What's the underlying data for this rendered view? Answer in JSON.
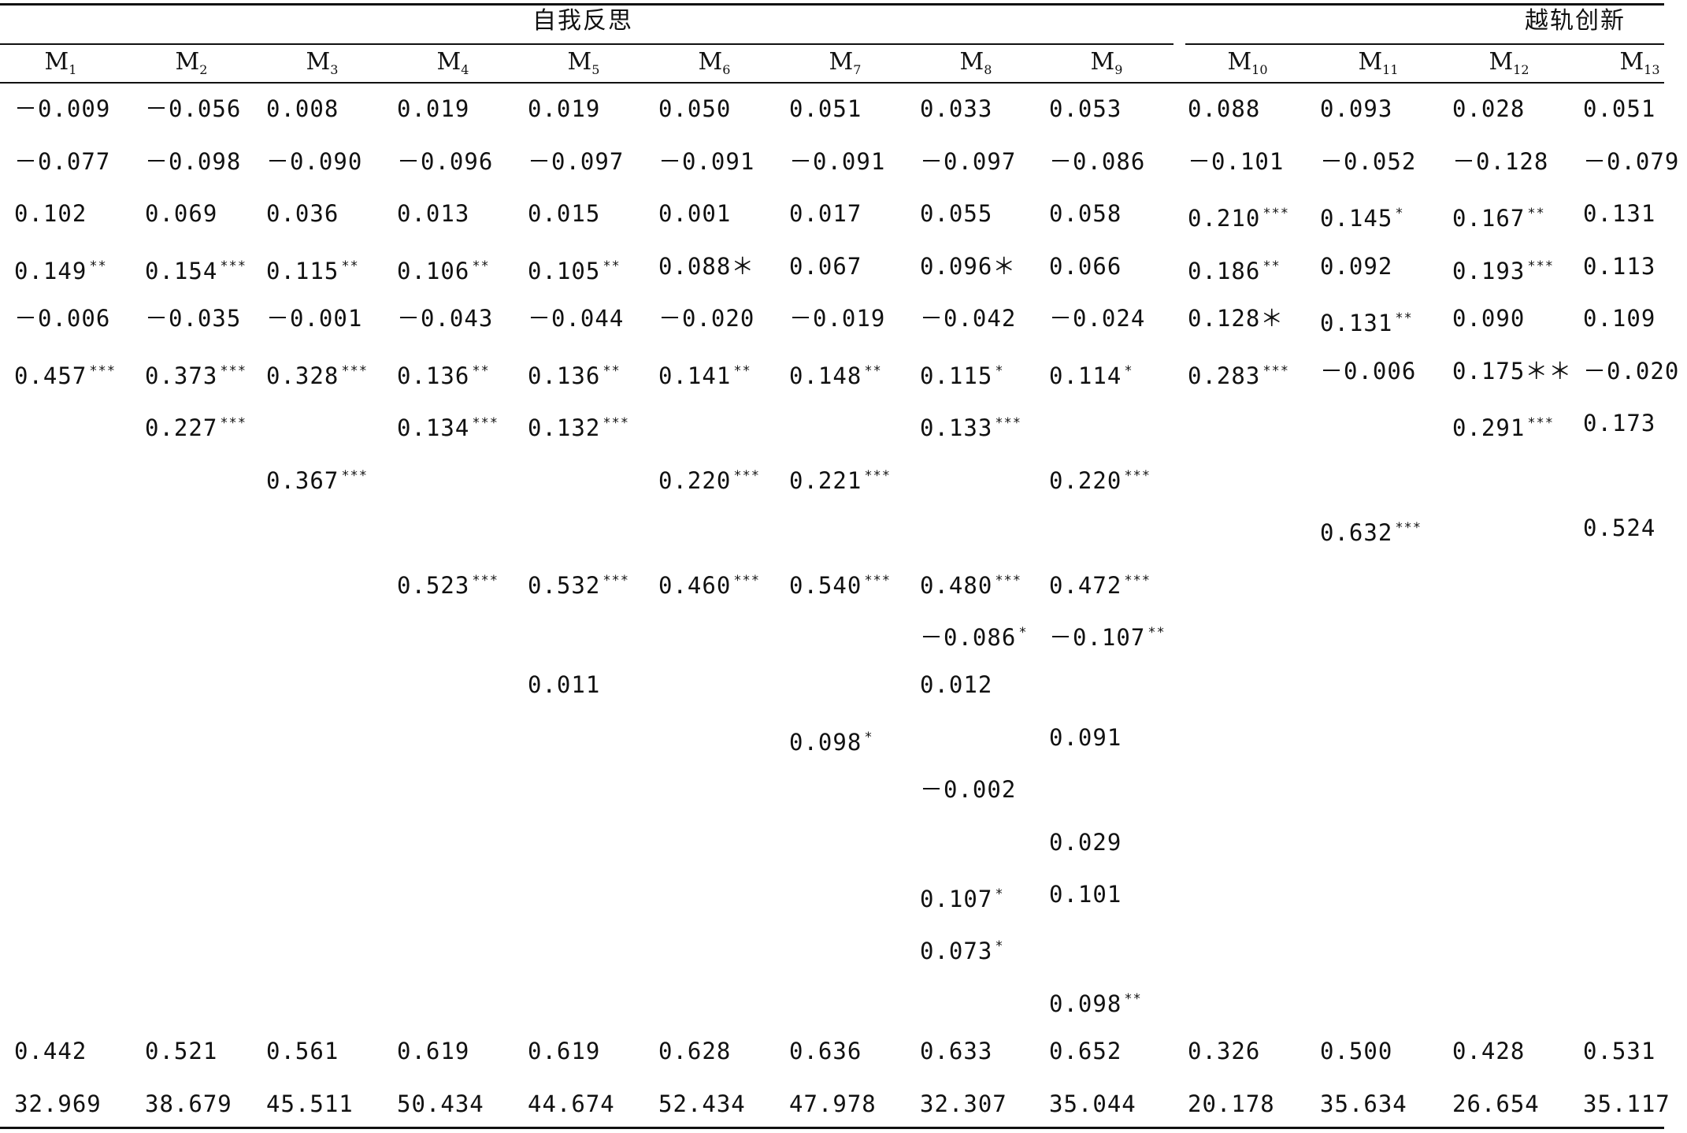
{
  "groups": [
    {
      "id": "self-reflection",
      "title": "自我反思"
    },
    {
      "id": "deviant-innovation",
      "title": "越轨创新"
    }
  ],
  "columns": [
    {
      "base": "M",
      "sub": "1"
    },
    {
      "base": "M",
      "sub": "2"
    },
    {
      "base": "M",
      "sub": "3"
    },
    {
      "base": "M",
      "sub": "4"
    },
    {
      "base": "M",
      "sub": "5"
    },
    {
      "base": "M",
      "sub": "6"
    },
    {
      "base": "M",
      "sub": "7"
    },
    {
      "base": "M",
      "sub": "8"
    },
    {
      "base": "M",
      "sub": "9"
    },
    {
      "base": "M",
      "sub": "10"
    },
    {
      "base": "M",
      "sub": "11"
    },
    {
      "base": "M",
      "sub": "12"
    },
    {
      "base": "M",
      "sub": "13"
    }
  ],
  "rows": [
    [
      [
        "－0.009",
        ""
      ],
      [
        "－0.056",
        ""
      ],
      [
        "0.008",
        ""
      ],
      [
        "0.019",
        ""
      ],
      [
        "0.019",
        ""
      ],
      [
        "0.050",
        ""
      ],
      [
        "0.051",
        ""
      ],
      [
        "0.033",
        ""
      ],
      [
        "0.053",
        ""
      ],
      [
        "0.088",
        ""
      ],
      [
        "0.093",
        ""
      ],
      [
        "0.028",
        ""
      ],
      [
        "0.051",
        ""
      ]
    ],
    [
      [
        "－0.077",
        ""
      ],
      [
        "－0.098",
        ""
      ],
      [
        "－0.090",
        ""
      ],
      [
        "－0.096",
        ""
      ],
      [
        "－0.097",
        ""
      ],
      [
        "－0.091",
        ""
      ],
      [
        "－0.091",
        ""
      ],
      [
        "－0.097",
        ""
      ],
      [
        "－0.086",
        ""
      ],
      [
        "－0.101",
        ""
      ],
      [
        "－0.052",
        ""
      ],
      [
        "－0.128",
        ""
      ],
      [
        "－0.079",
        ""
      ]
    ],
    [
      [
        "0.102",
        ""
      ],
      [
        "0.069",
        ""
      ],
      [
        "0.036",
        ""
      ],
      [
        "0.013",
        ""
      ],
      [
        "0.015",
        ""
      ],
      [
        "0.001",
        ""
      ],
      [
        "0.017",
        ""
      ],
      [
        "0.055",
        ""
      ],
      [
        "0.058",
        ""
      ],
      [
        "0.210",
        "***"
      ],
      [
        "0.145",
        "*"
      ],
      [
        "0.167",
        "**"
      ],
      [
        "0.131",
        ""
      ]
    ],
    [
      [
        "0.149",
        "**"
      ],
      [
        "0.154",
        "***"
      ],
      [
        "0.115",
        "**"
      ],
      [
        "0.106",
        "**"
      ],
      [
        "0.105",
        "**"
      ],
      [
        "0.088＊",
        ""
      ],
      [
        "0.067",
        ""
      ],
      [
        "0.096＊",
        ""
      ],
      [
        "0.066",
        ""
      ],
      [
        "0.186",
        "**"
      ],
      [
        "0.092",
        ""
      ],
      [
        "0.193",
        "***"
      ],
      [
        "0.113",
        ""
      ]
    ],
    [
      [
        "－0.006",
        ""
      ],
      [
        "－0.035",
        ""
      ],
      [
        "－0.001",
        ""
      ],
      [
        "－0.043",
        ""
      ],
      [
        "－0.044",
        ""
      ],
      [
        "－0.020",
        ""
      ],
      [
        "－0.019",
        ""
      ],
      [
        "－0.042",
        ""
      ],
      [
        "－0.024",
        ""
      ],
      [
        "0.128＊",
        ""
      ],
      [
        "0.131",
        "**"
      ],
      [
        "0.090",
        ""
      ],
      [
        "0.109",
        ""
      ]
    ],
    [
      [
        "0.457",
        "***"
      ],
      [
        "0.373",
        "***"
      ],
      [
        "0.328",
        "***"
      ],
      [
        "0.136",
        "**"
      ],
      [
        "0.136",
        "**"
      ],
      [
        "0.141",
        "**"
      ],
      [
        "0.148",
        "**"
      ],
      [
        "0.115",
        "*"
      ],
      [
        "0.114",
        "*"
      ],
      [
        "0.283",
        "***"
      ],
      [
        "－0.006",
        ""
      ],
      [
        "0.175＊＊",
        ""
      ],
      [
        "－0.020",
        ""
      ]
    ],
    [
      [
        "",
        ""
      ],
      [
        "0.227",
        "***"
      ],
      [
        "",
        ""
      ],
      [
        "0.134",
        "***"
      ],
      [
        "0.132",
        "***"
      ],
      [
        "",
        ""
      ],
      [
        "",
        ""
      ],
      [
        "0.133",
        "***"
      ],
      [
        "",
        ""
      ],
      [
        "",
        ""
      ],
      [
        "",
        ""
      ],
      [
        "0.291",
        "***"
      ],
      [
        "0.173",
        ""
      ]
    ],
    [
      [
        "",
        ""
      ],
      [
        "",
        ""
      ],
      [
        "0.367",
        "***"
      ],
      [
        "",
        ""
      ],
      [
        "",
        ""
      ],
      [
        "0.220",
        "***"
      ],
      [
        "0.221",
        "***"
      ],
      [
        "",
        ""
      ],
      [
        "0.220",
        "***"
      ],
      [
        "",
        ""
      ],
      [
        "",
        ""
      ],
      [
        "",
        ""
      ],
      [
        "",
        ""
      ]
    ],
    [
      [
        "",
        ""
      ],
      [
        "",
        ""
      ],
      [
        "",
        ""
      ],
      [
        "",
        ""
      ],
      [
        "",
        ""
      ],
      [
        "",
        ""
      ],
      [
        "",
        ""
      ],
      [
        "",
        ""
      ],
      [
        "",
        ""
      ],
      [
        "",
        ""
      ],
      [
        "0.632",
        "***"
      ],
      [
        "",
        ""
      ],
      [
        "0.524",
        ""
      ]
    ],
    [
      [
        "",
        ""
      ],
      [
        "",
        ""
      ],
      [
        "",
        ""
      ],
      [
        "0.523",
        "***"
      ],
      [
        "0.532",
        "***"
      ],
      [
        "0.460",
        "***"
      ],
      [
        "0.540",
        "***"
      ],
      [
        "0.480",
        "***"
      ],
      [
        "0.472",
        "***"
      ],
      [
        "",
        ""
      ],
      [
        "",
        ""
      ],
      [
        "",
        ""
      ],
      [
        "",
        ""
      ]
    ],
    [
      [
        "",
        ""
      ],
      [
        "",
        ""
      ],
      [
        "",
        ""
      ],
      [
        "",
        ""
      ],
      [
        "",
        ""
      ],
      [
        "",
        ""
      ],
      [
        "",
        ""
      ],
      [
        "－0.086",
        "*"
      ],
      [
        "－0.107",
        "**"
      ],
      [
        "",
        ""
      ],
      [
        "",
        ""
      ],
      [
        "",
        ""
      ],
      [
        "",
        ""
      ]
    ],
    [
      [
        "",
        ""
      ],
      [
        "",
        ""
      ],
      [
        "",
        ""
      ],
      [
        "",
        ""
      ],
      [
        "0.011",
        ""
      ],
      [
        "",
        ""
      ],
      [
        "",
        ""
      ],
      [
        "0.012",
        ""
      ],
      [
        "",
        ""
      ],
      [
        "",
        ""
      ],
      [
        "",
        ""
      ],
      [
        "",
        ""
      ],
      [
        "",
        ""
      ]
    ],
    [
      [
        "",
        ""
      ],
      [
        "",
        ""
      ],
      [
        "",
        ""
      ],
      [
        "",
        ""
      ],
      [
        "",
        ""
      ],
      [
        "",
        ""
      ],
      [
        "0.098",
        "*"
      ],
      [
        "",
        ""
      ],
      [
        "0.091",
        ""
      ],
      [
        "",
        ""
      ],
      [
        "",
        ""
      ],
      [
        "",
        ""
      ],
      [
        "",
        ""
      ]
    ],
    [
      [
        "",
        ""
      ],
      [
        "",
        ""
      ],
      [
        "",
        ""
      ],
      [
        "",
        ""
      ],
      [
        "",
        ""
      ],
      [
        "",
        ""
      ],
      [
        "",
        ""
      ],
      [
        "－0.002",
        ""
      ],
      [
        "",
        ""
      ],
      [
        "",
        ""
      ],
      [
        "",
        ""
      ],
      [
        "",
        ""
      ],
      [
        "",
        ""
      ]
    ],
    [
      [
        "",
        ""
      ],
      [
        "",
        ""
      ],
      [
        "",
        ""
      ],
      [
        "",
        ""
      ],
      [
        "",
        ""
      ],
      [
        "",
        ""
      ],
      [
        "",
        ""
      ],
      [
        "",
        ""
      ],
      [
        "0.029",
        ""
      ],
      [
        "",
        ""
      ],
      [
        "",
        ""
      ],
      [
        "",
        ""
      ],
      [
        "",
        ""
      ]
    ],
    [
      [
        "",
        ""
      ],
      [
        "",
        ""
      ],
      [
        "",
        ""
      ],
      [
        "",
        ""
      ],
      [
        "",
        ""
      ],
      [
        "",
        ""
      ],
      [
        "",
        ""
      ],
      [
        "0.107",
        "*"
      ],
      [
        "0.101",
        ""
      ],
      [
        "",
        ""
      ],
      [
        "",
        ""
      ],
      [
        "",
        ""
      ],
      [
        "",
        ""
      ]
    ],
    [
      [
        "",
        ""
      ],
      [
        "",
        ""
      ],
      [
        "",
        ""
      ],
      [
        "",
        ""
      ],
      [
        "",
        ""
      ],
      [
        "",
        ""
      ],
      [
        "",
        ""
      ],
      [
        "0.073",
        "*"
      ],
      [
        "",
        ""
      ],
      [
        "",
        ""
      ],
      [
        "",
        ""
      ],
      [
        "",
        ""
      ],
      [
        "",
        ""
      ]
    ],
    [
      [
        "",
        ""
      ],
      [
        "",
        ""
      ],
      [
        "",
        ""
      ],
      [
        "",
        ""
      ],
      [
        "",
        ""
      ],
      [
        "",
        ""
      ],
      [
        "",
        ""
      ],
      [
        "",
        ""
      ],
      [
        "0.098",
        "**"
      ],
      [
        "",
        ""
      ],
      [
        "",
        ""
      ],
      [
        "",
        ""
      ],
      [
        "",
        ""
      ]
    ],
    [
      [
        "0.442",
        ""
      ],
      [
        "0.521",
        ""
      ],
      [
        "0.561",
        ""
      ],
      [
        "0.619",
        ""
      ],
      [
        "0.619",
        ""
      ],
      [
        "0.628",
        ""
      ],
      [
        "0.636",
        ""
      ],
      [
        "0.633",
        ""
      ],
      [
        "0.652",
        ""
      ],
      [
        "0.326",
        ""
      ],
      [
        "0.500",
        ""
      ],
      [
        "0.428",
        ""
      ],
      [
        "0.531",
        ""
      ]
    ],
    [
      [
        "32.969",
        ""
      ],
      [
        "38.679",
        ""
      ],
      [
        "45.511",
        ""
      ],
      [
        "50.434",
        ""
      ],
      [
        "44.674",
        ""
      ],
      [
        "52.434",
        ""
      ],
      [
        "47.978",
        ""
      ],
      [
        "32.307",
        ""
      ],
      [
        "35.044",
        ""
      ],
      [
        "20.178",
        ""
      ],
      [
        "35.634",
        ""
      ],
      [
        "26.654",
        ""
      ],
      [
        "35.117",
        ""
      ]
    ]
  ]
}
